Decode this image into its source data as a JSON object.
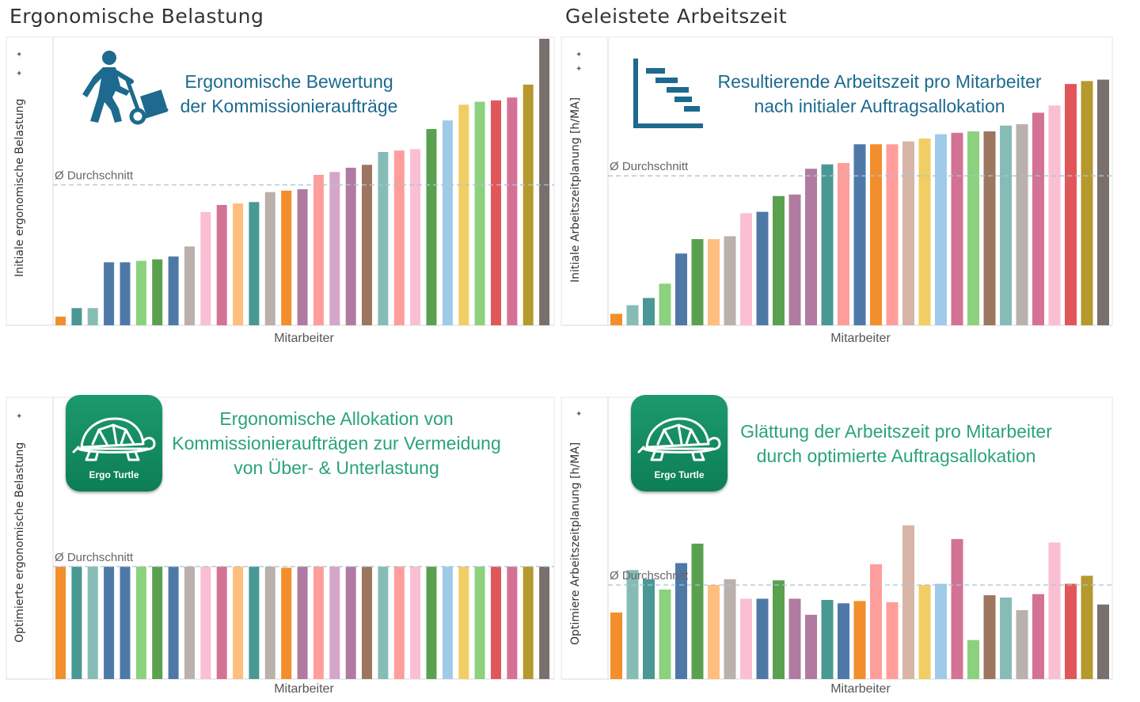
{
  "sections": {
    "left_title": "Ergonomische Belastung",
    "right_title": "Geleistete Arbeitszeit"
  },
  "average_label": "Ø Durchschnitt",
  "panels": {
    "top_left": {
      "ylabel": "Initiale ergonomische Belastung",
      "xlabel": "Mitarbeiter",
      "caption": [
        "Ergonomische Bewertung",
        "der Kommissionieraufträge"
      ],
      "icon": "worker-hand-truck-icon"
    },
    "top_right": {
      "ylabel": "Initiale Arbeitszeitplanung [h/MA]",
      "xlabel": "Mitarbeiter",
      "caption": [
        "Resultierende Arbeitszeit pro Mitarbeiter",
        "nach initialer Auftragsallokation"
      ],
      "icon": "gantt-chart-icon"
    },
    "bottom_left": {
      "ylabel": "Optimierte ergonomische Belastung",
      "xlabel": "Mitarbeiter",
      "caption": [
        "Ergonomische Allokation von",
        "Kommissionieraufträgen zur Vermeidung",
        "von Über- & Unterlastung"
      ],
      "icon": "turtle-icon",
      "badge_text": "Ergo Turtle"
    },
    "bottom_right": {
      "ylabel": "Optimiere Arbeitszeitplanung [h/MA]",
      "xlabel": "Mitarbeiter",
      "caption": [
        "Glättung der Arbeitszeit pro Mitarbeiter",
        "durch optimierte Auftragsallokation"
      ],
      "icon": "turtle-icon",
      "badge_text": "Ergo Turtle"
    }
  },
  "colors": {
    "blue_text": "#1d6a8e",
    "green_text": "#2aa37a",
    "average_line": "#a9c4d6"
  },
  "chart_data": [
    {
      "type": "bar",
      "ylabel": "Initiale ergonomische Belastung",
      "xlabel": "Mitarbeiter",
      "ylim": [
        0,
        100
      ],
      "average": 49,
      "values": [
        3,
        6,
        6,
        22,
        22,
        22.5,
        23,
        24,
        27.5,
        39.5,
        42,
        42.5,
        43,
        46.5,
        47,
        47.5,
        52.5,
        53.5,
        55,
        56,
        60.5,
        61,
        61.5,
        68.5,
        71.5,
        77,
        78,
        78.5,
        79.5,
        84,
        100
      ],
      "colors": [
        "#f28e2b",
        "#499894",
        "#86bcb6",
        "#4e79a7",
        "#4e79a7",
        "#8cd17d",
        "#59a14f",
        "#4e79a7",
        "#bab0ac",
        "#fabfd2",
        "#d37295",
        "#ffbe7d",
        "#499894",
        "#bab0ac",
        "#f28e2b",
        "#b07aa1",
        "#ff9d9a",
        "#d4a6c8",
        "#b07aa1",
        "#9d7660",
        "#86bcb6",
        "#ff9d9a",
        "#fabfd2",
        "#59a14f",
        "#a0cbe8",
        "#f1ce63",
        "#8cd17d",
        "#e15759",
        "#d37295",
        "#b6992d",
        "#79706e"
      ]
    },
    {
      "type": "bar",
      "ylabel": "Initiale Arbeitszeitplanung [h/MA]",
      "xlabel": "Mitarbeiter",
      "ylim": [
        0,
        100
      ],
      "average": 52,
      "values": [
        4,
        7,
        9.5,
        14.5,
        25,
        30,
        30,
        31,
        39,
        39.5,
        45,
        45.5,
        54.5,
        56,
        56.5,
        63,
        63,
        63,
        64,
        65,
        66.5,
        67,
        67.5,
        67.5,
        69.5,
        70,
        74,
        76.5,
        84,
        85,
        85.5
      ],
      "colors": [
        "#f28e2b",
        "#86bcb6",
        "#499894",
        "#8cd17d",
        "#4e79a7",
        "#59a14f",
        "#ffbe7d",
        "#bab0ac",
        "#fabfd2",
        "#4e79a7",
        "#59a14f",
        "#b07aa1",
        "#b07aa1",
        "#499894",
        "#ff9d9a",
        "#4e79a7",
        "#f28e2b",
        "#ff9d9a",
        "#d7b5a6",
        "#f1ce63",
        "#a0cbe8",
        "#d37295",
        "#8cd17d",
        "#9d7660",
        "#86bcb6",
        "#bab0ac",
        "#d37295",
        "#fabfd2",
        "#e15759",
        "#b6992d",
        "#79706e"
      ]
    },
    {
      "type": "bar",
      "ylabel": "Optimierte ergonomische Belastung",
      "xlabel": "Mitarbeiter",
      "ylim": [
        0,
        100
      ],
      "average": 49,
      "values": [
        49,
        49,
        49,
        49,
        49,
        49,
        49,
        49,
        49,
        49,
        49,
        49,
        49,
        49,
        48.5,
        49,
        49,
        49,
        49,
        49,
        49,
        49,
        49,
        49,
        49,
        49,
        49,
        49,
        49,
        49,
        49
      ],
      "colors": [
        "#f28e2b",
        "#499894",
        "#86bcb6",
        "#4e79a7",
        "#4e79a7",
        "#8cd17d",
        "#59a14f",
        "#4e79a7",
        "#bab0ac",
        "#fabfd2",
        "#d37295",
        "#ffbe7d",
        "#499894",
        "#bab0ac",
        "#f28e2b",
        "#b07aa1",
        "#ff9d9a",
        "#d4a6c8",
        "#b07aa1",
        "#9d7660",
        "#86bcb6",
        "#ff9d9a",
        "#fabfd2",
        "#59a14f",
        "#a0cbe8",
        "#f1ce63",
        "#8cd17d",
        "#e15759",
        "#d37295",
        "#b6992d",
        "#79706e"
      ]
    },
    {
      "type": "bar",
      "ylabel": "Optimiere Arbeitszeitplanung [h/MA]",
      "xlabel": "Mitarbeiter",
      "ylim": [
        0,
        100
      ],
      "average": 41,
      "values": [
        29,
        47.5,
        43.5,
        39,
        50.5,
        59,
        41,
        43.5,
        35,
        35,
        43,
        35,
        28,
        34.5,
        33,
        34,
        50,
        33.5,
        67,
        41,
        41.5,
        61,
        17,
        36.5,
        35.5,
        30,
        37,
        59.5,
        41.5,
        45,
        32.5
      ],
      "colors": [
        "#f28e2b",
        "#86bcb6",
        "#499894",
        "#8cd17d",
        "#4e79a7",
        "#59a14f",
        "#ffbe7d",
        "#bab0ac",
        "#fabfd2",
        "#4e79a7",
        "#59a14f",
        "#b07aa1",
        "#b07aa1",
        "#499894",
        "#4e79a7",
        "#f28e2b",
        "#ff9d9a",
        "#ff9d9a",
        "#d7b5a6",
        "#f1ce63",
        "#a0cbe8",
        "#d37295",
        "#8cd17d",
        "#9d7660",
        "#86bcb6",
        "#bab0ac",
        "#d37295",
        "#fabfd2",
        "#e15759",
        "#b6992d",
        "#79706e"
      ]
    }
  ]
}
